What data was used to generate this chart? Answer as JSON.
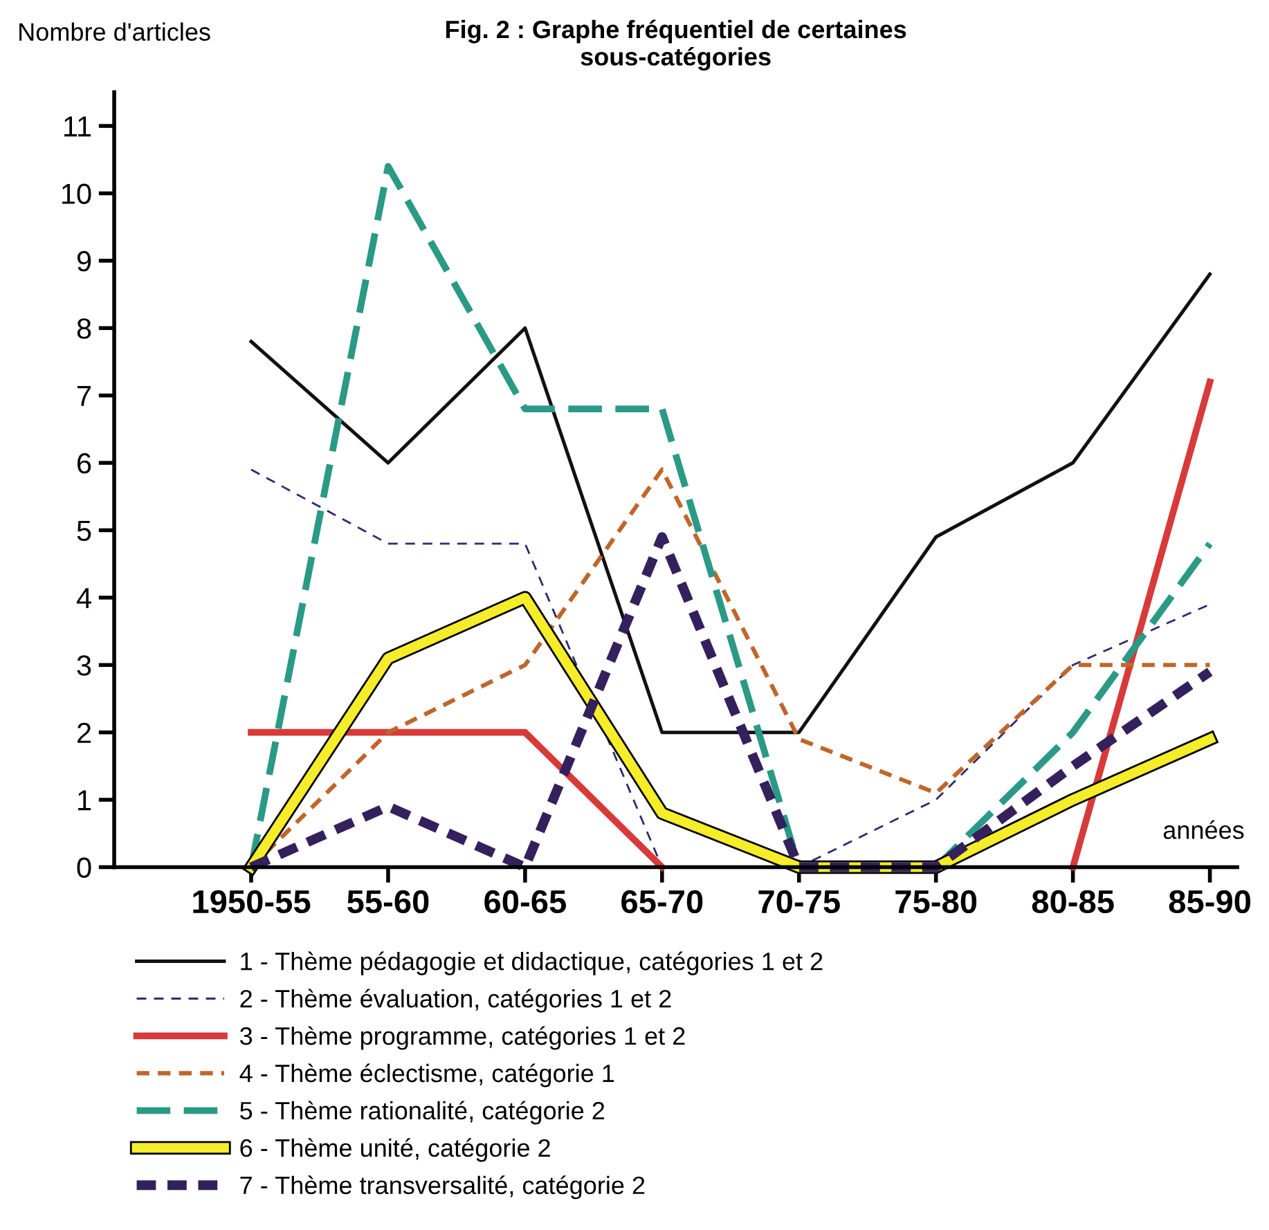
{
  "chart_data": {
    "type": "line",
    "title": "Fig. 2 : Graphe fréquentiel de certaines\nsous-catégories",
    "xlabel": "années",
    "ylabel": "Nombre d'articles",
    "categories": [
      "1950-55",
      "55-60",
      "60-65",
      "65-70",
      "70-75",
      "75-80",
      "80-85",
      "85-90"
    ],
    "series": [
      {
        "name": "1 - Thème pédagogie et didactique, catégories 1 et 2",
        "color": "#111111",
        "line_style": "solid",
        "values": [
          7.8,
          6,
          8,
          2,
          2,
          4.9,
          6,
          8.8
        ]
      },
      {
        "name": "2 - Thème évaluation, catégories 1 et 2",
        "color": "#2e2a6e",
        "line_style": "dashed",
        "values": [
          5.9,
          4.8,
          4.8,
          0,
          0,
          1,
          3,
          3.9
        ]
      },
      {
        "name": "3 - Thème programme, catégories 1 et 2",
        "color": "#d83a3a",
        "line_style": "solid",
        "values": [
          2,
          2,
          2,
          0,
          null,
          null,
          0,
          7.2
        ]
      },
      {
        "name": "4 - Thème éclectisme, catégorie 1",
        "color": "#c0662a",
        "line_style": "dashed",
        "values": [
          0,
          2,
          3,
          5.9,
          1.9,
          1.1,
          3,
          3
        ]
      },
      {
        "name": "5 - Thème rationalité, catégorie 2",
        "color": "#2a9a86",
        "line_style": "dashed",
        "values": [
          0,
          10.4,
          6.8,
          6.8,
          0,
          0,
          2,
          4.8
        ]
      },
      {
        "name": "6 - Thème unité, catégorie 2",
        "color": "#f5ec2a",
        "line_style": "solid",
        "values": [
          0,
          3.1,
          4,
          0.8,
          0,
          0,
          1,
          1.9
        ]
      },
      {
        "name": "7 - Thème transversalité, catégorie 2",
        "color": "#35205e",
        "line_style": "dashed",
        "values": [
          0,
          0.9,
          0,
          4.9,
          0,
          0,
          1.5,
          2.9
        ]
      }
    ],
    "ylim": [
      0,
      11.5
    ],
    "yticks": [
      0,
      1,
      2,
      3,
      4,
      5,
      6,
      7,
      8,
      9,
      10,
      11
    ],
    "grid": false,
    "legend": "bottom",
    "marker": "none"
  }
}
